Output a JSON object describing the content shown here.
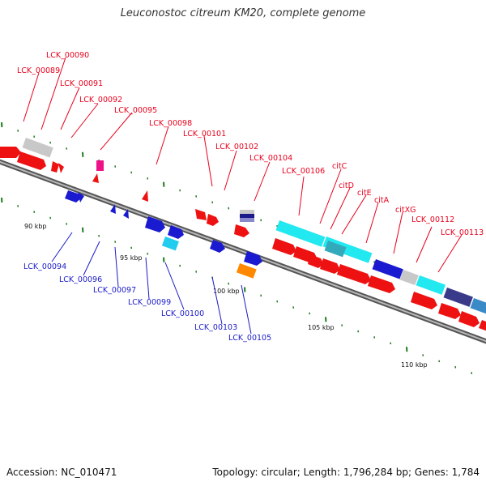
{
  "title": "Leuconostoc citreum KM20, complete genome",
  "footer": {
    "accession": "Accession: NC_010471",
    "stats": "Topology: circular; Length: 1,796,284 bp; Genes: 1,784"
  },
  "colors": {
    "forward_label": "#e8001c",
    "reverse_label": "#1a1ac8",
    "axis": "#8a8a8a",
    "tick": "#1f7a1f"
  },
  "scale_labels": [
    "90 kbp",
    "95 kbp",
    "100 kbp",
    "105 kbp",
    "110 kbp"
  ],
  "top_labels": [
    "LCK_00090",
    "LCK_00089",
    "LCK_00091",
    "LCK_00092",
    "LCK_00095",
    "LCK_00098",
    "LCK_00101",
    "LCK_00102",
    "LCK_00104",
    "LCK_00106",
    "citC",
    "citD",
    "citE",
    "citA",
    "citXG",
    "LCK_00112",
    "LCK_00113"
  ],
  "bottom_labels": [
    "LCK_00094",
    "LCK_00096",
    "LCK_00097",
    "LCK_00099",
    "LCK_00100",
    "LCK_00103",
    "LCK_00105"
  ]
}
